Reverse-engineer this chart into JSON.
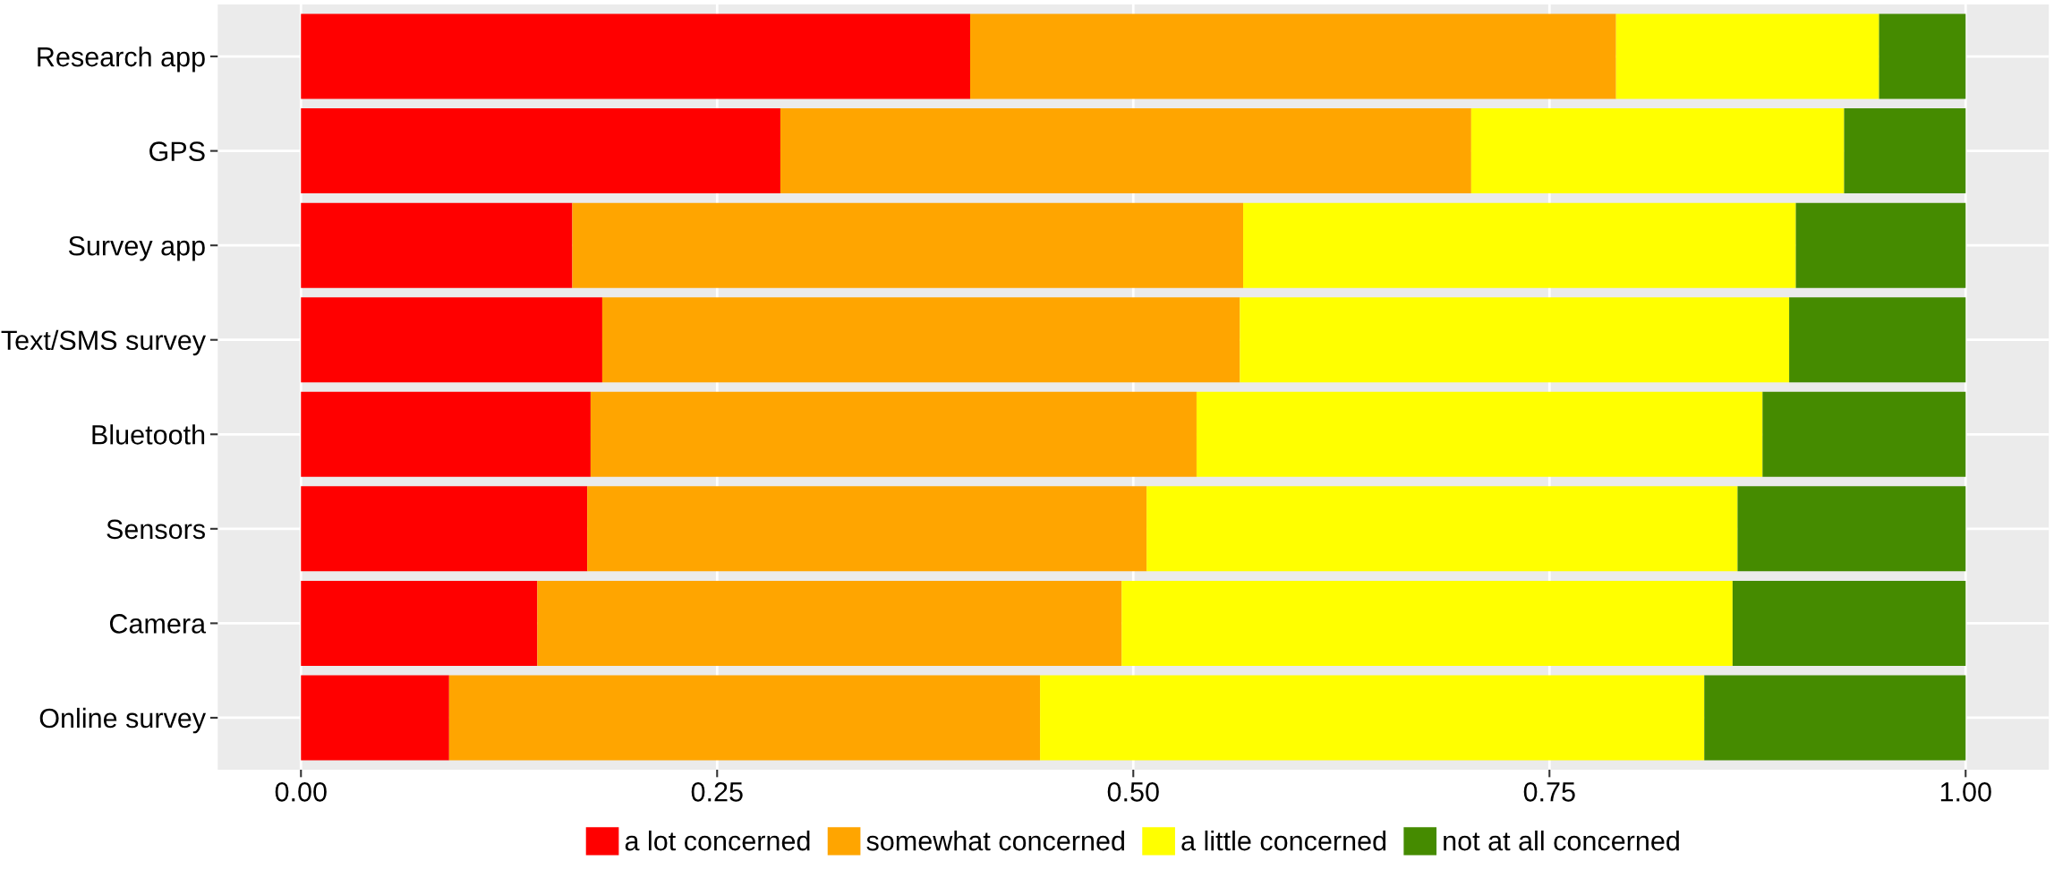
{
  "chart_data": {
    "type": "bar",
    "orientation": "horizontal",
    "stacked": true,
    "categories": [
      "Research app",
      "GPS",
      "Survey app",
      "Text/SMS survey",
      "Bluetooth",
      "Sensors",
      "Camera",
      "Online survey"
    ],
    "series": [
      {
        "name": "a lot concerned",
        "color": "#ff0000",
        "values": [
          0.402,
          0.288,
          0.163,
          0.181,
          0.174,
          0.172,
          0.142,
          0.089
        ]
      },
      {
        "name": "somewhat concerned",
        "color": "#ffa500",
        "values": [
          0.388,
          0.415,
          0.403,
          0.383,
          0.364,
          0.336,
          0.351,
          0.355
        ]
      },
      {
        "name": "a little concerned",
        "color": "#ffff00",
        "values": [
          0.158,
          0.224,
          0.332,
          0.33,
          0.34,
          0.355,
          0.367,
          0.399
        ]
      },
      {
        "name": "not at all concerned",
        "color": "#458b00",
        "values": [
          0.052,
          0.073,
          0.102,
          0.106,
          0.122,
          0.137,
          0.14,
          0.157
        ]
      }
    ],
    "xlim": [
      -0.05,
      1.05
    ],
    "xticks": [
      {
        "value": 0,
        "label": "0.00"
      },
      {
        "value": 0.25,
        "label": "0.25"
      },
      {
        "value": 0.5,
        "label": "0.50"
      },
      {
        "value": 0.75,
        "label": "0.75"
      },
      {
        "value": 1,
        "label": "1.00"
      }
    ],
    "grid": true,
    "legend": "bottom"
  }
}
